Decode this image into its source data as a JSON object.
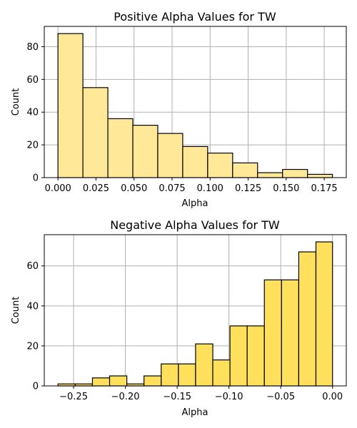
{
  "chart_data": [
    {
      "type": "bar",
      "title": "Positive Alpha Values for TW",
      "xlabel": "Alpha",
      "ylabel": "Count",
      "bin_edges": [
        0.0,
        0.0164,
        0.0328,
        0.0492,
        0.0656,
        0.082,
        0.0984,
        0.1148,
        0.1312,
        0.1476,
        0.164,
        0.1804
      ],
      "values": [
        88,
        55,
        36,
        32,
        27,
        19,
        15,
        9,
        3,
        5,
        2
      ],
      "xlim": [
        -0.009,
        0.1895
      ],
      "ylim": [
        0,
        92.4
      ],
      "xticks": [
        0.0,
        0.025,
        0.05,
        0.075,
        0.1,
        0.125,
        0.15,
        0.175
      ],
      "xtick_labels": [
        "0.000",
        "0.025",
        "0.050",
        "0.075",
        "0.100",
        "0.125",
        "0.150",
        "0.175"
      ],
      "yticks": [
        0,
        20,
        40,
        60,
        80
      ],
      "ytick_labels": [
        "0",
        "20",
        "40",
        "60",
        "80"
      ],
      "grid": true,
      "bar_color": "#ffe999",
      "edge_color": "#000000"
    },
    {
      "type": "bar",
      "title": "Negative Alpha Values for TW",
      "xlabel": "Alpha",
      "ylabel": "Count",
      "bin_edges": [
        -0.265,
        -0.2484,
        -0.2318,
        -0.2152,
        -0.1986,
        -0.182,
        -0.1654,
        -0.1488,
        -0.1322,
        -0.1156,
        -0.099,
        -0.0824,
        -0.0658,
        -0.0492,
        -0.0326,
        -0.016,
        0.0
      ],
      "values": [
        1,
        1,
        4,
        5,
        1,
        5,
        11,
        11,
        21,
        13,
        30,
        30,
        53,
        53,
        67,
        72
      ],
      "xlim": [
        -0.2783,
        0.0133
      ],
      "ylim": [
        0,
        75.6
      ],
      "xticks": [
        -0.25,
        -0.2,
        -0.15,
        -0.1,
        -0.05,
        0.0
      ],
      "xtick_labels": [
        "−0.25",
        "−0.20",
        "−0.15",
        "−0.10",
        "−0.05",
        "0.00"
      ],
      "yticks": [
        0,
        20,
        40,
        60
      ],
      "ytick_labels": [
        "0",
        "20",
        "40",
        "60"
      ],
      "grid": true,
      "bar_color": "#ffe05c",
      "edge_color": "#000000"
    }
  ]
}
